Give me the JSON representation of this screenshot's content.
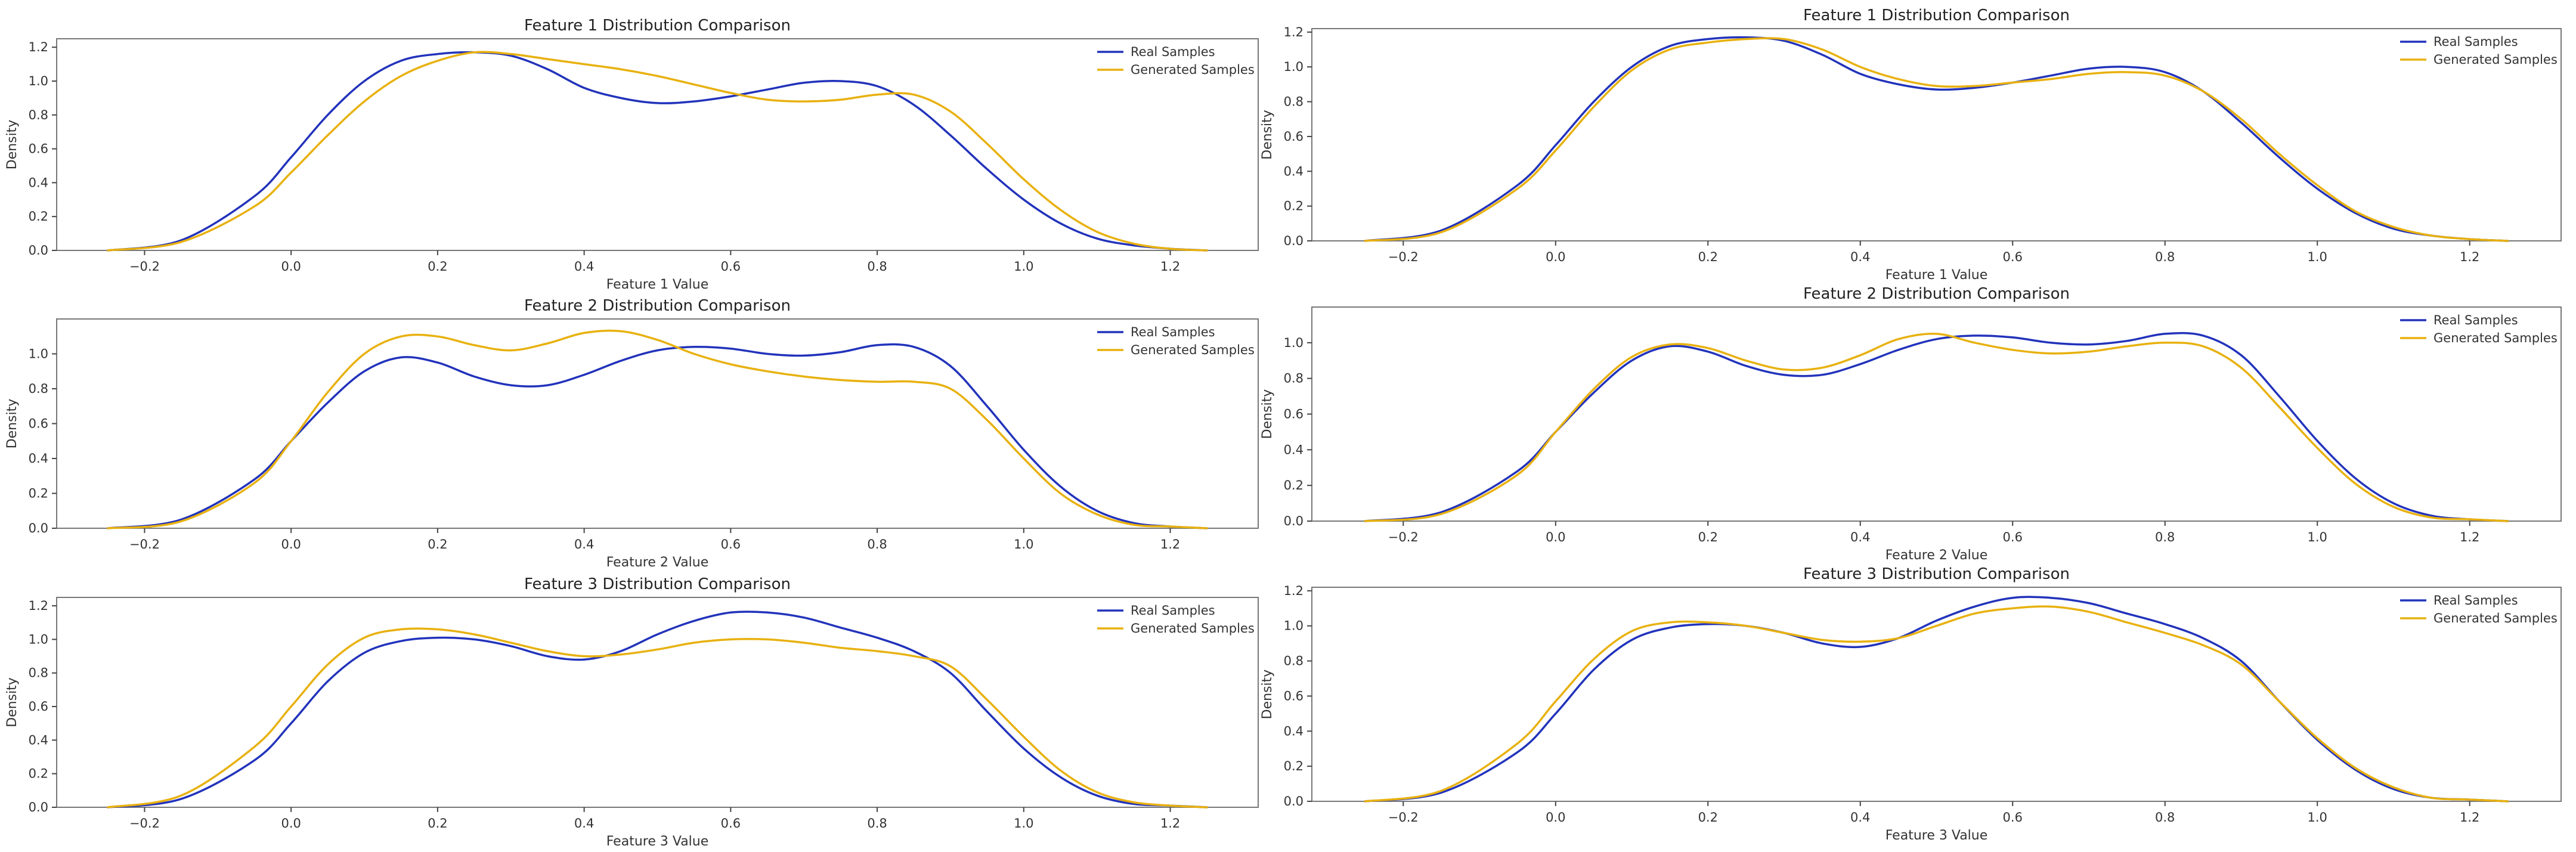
{
  "colors": {
    "real": "#2233bb",
    "generated": "#e8b10f",
    "frame": "#777777"
  },
  "legend": {
    "real_label": "Real Samples",
    "generated_label": "Generated Samples",
    "position": "top-right"
  },
  "chart_data": [
    {
      "type": "line",
      "panel": "left-1",
      "title": "Feature 1 Distribution Comparison",
      "xlabel": "Feature 1 Value",
      "ylabel": "Density",
      "xlim": [
        -0.32,
        1.32
      ],
      "ylim": [
        0,
        1.25
      ],
      "xticks": [
        "-0.2",
        "0.0",
        "0.2",
        "0.4",
        "0.6",
        "0.8",
        "1.0",
        "1.2"
      ],
      "yticks": [
        "0.0",
        "0.2",
        "0.4",
        "0.6",
        "0.8",
        "1.0",
        "1.2"
      ],
      "x": [
        -0.25,
        -0.15,
        -0.05,
        0.0,
        0.05,
        0.1,
        0.15,
        0.2,
        0.25,
        0.3,
        0.35,
        0.4,
        0.45,
        0.5,
        0.55,
        0.6,
        0.65,
        0.7,
        0.75,
        0.8,
        0.85,
        0.9,
        0.95,
        1.0,
        1.05,
        1.1,
        1.15,
        1.2,
        1.25
      ],
      "series": [
        {
          "name": "Real Samples",
          "values": [
            0.0,
            0.06,
            0.32,
            0.55,
            0.8,
            1.0,
            1.12,
            1.16,
            1.17,
            1.15,
            1.07,
            0.96,
            0.9,
            0.87,
            0.88,
            0.91,
            0.95,
            0.99,
            1.0,
            0.97,
            0.86,
            0.68,
            0.48,
            0.3,
            0.16,
            0.07,
            0.03,
            0.01,
            0.0
          ]
        },
        {
          "name": "Generated Samples",
          "values": [
            0.0,
            0.05,
            0.26,
            0.46,
            0.68,
            0.88,
            1.03,
            1.12,
            1.17,
            1.16,
            1.13,
            1.1,
            1.07,
            1.03,
            0.98,
            0.93,
            0.89,
            0.88,
            0.89,
            0.92,
            0.92,
            0.82,
            0.63,
            0.42,
            0.24,
            0.11,
            0.04,
            0.01,
            0.0
          ]
        }
      ]
    },
    {
      "type": "line",
      "panel": "left-2",
      "title": "Feature 2 Distribution Comparison",
      "xlabel": "Feature 2 Value",
      "ylabel": "Density",
      "xlim": [
        -0.32,
        1.32
      ],
      "ylim": [
        0,
        1.2
      ],
      "xticks": [
        "-0.2",
        "0.0",
        "0.2",
        "0.4",
        "0.6",
        "0.8",
        "1.0",
        "1.2"
      ],
      "yticks": [
        "0.0",
        "0.2",
        "0.4",
        "0.6",
        "0.8",
        "1.0"
      ],
      "x": [
        -0.25,
        -0.15,
        -0.05,
        0.0,
        0.05,
        0.1,
        0.15,
        0.2,
        0.25,
        0.3,
        0.35,
        0.4,
        0.45,
        0.5,
        0.55,
        0.6,
        0.65,
        0.7,
        0.75,
        0.8,
        0.85,
        0.9,
        0.95,
        1.0,
        1.05,
        1.1,
        1.15,
        1.2,
        1.25
      ],
      "series": [
        {
          "name": "Real Samples",
          "values": [
            0.0,
            0.05,
            0.28,
            0.5,
            0.72,
            0.9,
            0.98,
            0.95,
            0.87,
            0.82,
            0.82,
            0.88,
            0.96,
            1.02,
            1.04,
            1.03,
            1.0,
            0.99,
            1.01,
            1.05,
            1.04,
            0.93,
            0.7,
            0.45,
            0.24,
            0.1,
            0.03,
            0.01,
            0.0
          ]
        },
        {
          "name": "Generated Samples",
          "values": [
            0.0,
            0.04,
            0.26,
            0.5,
            0.78,
            1.0,
            1.1,
            1.1,
            1.05,
            1.02,
            1.06,
            1.12,
            1.13,
            1.08,
            1.0,
            0.94,
            0.9,
            0.87,
            0.85,
            0.84,
            0.84,
            0.8,
            0.62,
            0.4,
            0.2,
            0.08,
            0.02,
            0.01,
            0.0
          ]
        }
      ]
    },
    {
      "type": "line",
      "panel": "left-3",
      "title": "Feature 3 Distribution Comparison",
      "xlabel": "Feature 3 Value",
      "ylabel": "Density",
      "xlim": [
        -0.32,
        1.32
      ],
      "ylim": [
        0,
        1.25
      ],
      "xticks": [
        "-0.2",
        "0.0",
        "0.2",
        "0.4",
        "0.6",
        "0.8",
        "1.0",
        "1.2"
      ],
      "yticks": [
        "0.0",
        "0.2",
        "0.4",
        "0.6",
        "0.8",
        "1.0",
        "1.2"
      ],
      "x": [
        -0.25,
        -0.15,
        -0.05,
        0.0,
        0.05,
        0.1,
        0.15,
        0.2,
        0.25,
        0.3,
        0.35,
        0.4,
        0.45,
        0.5,
        0.55,
        0.6,
        0.65,
        0.7,
        0.75,
        0.8,
        0.85,
        0.9,
        0.95,
        1.0,
        1.05,
        1.1,
        1.15,
        1.2,
        1.25
      ],
      "series": [
        {
          "name": "Real Samples",
          "values": [
            0.0,
            0.05,
            0.28,
            0.5,
            0.75,
            0.92,
            0.99,
            1.01,
            1.0,
            0.96,
            0.9,
            0.88,
            0.93,
            1.03,
            1.11,
            1.16,
            1.16,
            1.13,
            1.07,
            1.01,
            0.93,
            0.8,
            0.57,
            0.35,
            0.18,
            0.07,
            0.02,
            0.01,
            0.0
          ]
        },
        {
          "name": "Generated Samples",
          "values": [
            0.0,
            0.07,
            0.36,
            0.6,
            0.85,
            1.01,
            1.06,
            1.06,
            1.03,
            0.98,
            0.93,
            0.9,
            0.91,
            0.94,
            0.98,
            1.0,
            1.0,
            0.98,
            0.95,
            0.93,
            0.9,
            0.84,
            0.64,
            0.42,
            0.22,
            0.09,
            0.03,
            0.01,
            0.0
          ]
        }
      ]
    },
    {
      "type": "line",
      "panel": "right-1",
      "title": "Feature 1 Distribution Comparison",
      "xlabel": "Feature 1 Value",
      "ylabel": "Density",
      "xlim": [
        -0.32,
        1.32
      ],
      "ylim": [
        0,
        1.22
      ],
      "xticks": [
        "-0.2",
        "0.0",
        "0.2",
        "0.4",
        "0.6",
        "0.8",
        "1.0",
        "1.2"
      ],
      "yticks": [
        "0.0",
        "0.2",
        "0.4",
        "0.6",
        "0.8",
        "1.0",
        "1.2"
      ],
      "x": [
        -0.25,
        -0.15,
        -0.05,
        0.0,
        0.05,
        0.1,
        0.15,
        0.2,
        0.25,
        0.3,
        0.35,
        0.4,
        0.45,
        0.5,
        0.55,
        0.6,
        0.65,
        0.7,
        0.75,
        0.8,
        0.85,
        0.9,
        0.95,
        1.0,
        1.05,
        1.1,
        1.15,
        1.2,
        1.25
      ],
      "series": [
        {
          "name": "Real Samples",
          "values": [
            0.0,
            0.06,
            0.32,
            0.55,
            0.8,
            1.0,
            1.12,
            1.16,
            1.17,
            1.15,
            1.07,
            0.96,
            0.9,
            0.87,
            0.88,
            0.91,
            0.95,
            0.99,
            1.0,
            0.97,
            0.86,
            0.68,
            0.48,
            0.3,
            0.16,
            0.07,
            0.03,
            0.01,
            0.0
          ]
        },
        {
          "name": "Generated Samples",
          "values": [
            0.0,
            0.05,
            0.3,
            0.52,
            0.77,
            0.98,
            1.1,
            1.14,
            1.16,
            1.16,
            1.1,
            1.0,
            0.93,
            0.89,
            0.89,
            0.91,
            0.93,
            0.96,
            0.97,
            0.95,
            0.86,
            0.7,
            0.5,
            0.32,
            0.17,
            0.08,
            0.03,
            0.01,
            0.0
          ]
        }
      ]
    },
    {
      "type": "line",
      "panel": "right-2",
      "title": "Feature 2 Distribution Comparison",
      "xlabel": "Feature 2 Value",
      "ylabel": "Density",
      "xlim": [
        -0.32,
        1.32
      ],
      "ylim": [
        0,
        1.2
      ],
      "xticks": [
        "-0.2",
        "0.0",
        "0.2",
        "0.4",
        "0.6",
        "0.8",
        "1.0",
        "1.2"
      ],
      "yticks": [
        "0.0",
        "0.2",
        "0.4",
        "0.6",
        "0.8",
        "1.0"
      ],
      "x": [
        -0.25,
        -0.15,
        -0.05,
        0.0,
        0.05,
        0.1,
        0.15,
        0.2,
        0.25,
        0.3,
        0.35,
        0.4,
        0.45,
        0.5,
        0.55,
        0.6,
        0.65,
        0.7,
        0.75,
        0.8,
        0.85,
        0.9,
        0.95,
        1.0,
        1.05,
        1.1,
        1.15,
        1.2,
        1.25
      ],
      "series": [
        {
          "name": "Real Samples",
          "values": [
            0.0,
            0.05,
            0.28,
            0.5,
            0.72,
            0.9,
            0.98,
            0.95,
            0.87,
            0.82,
            0.82,
            0.88,
            0.96,
            1.02,
            1.04,
            1.03,
            1.0,
            0.99,
            1.01,
            1.05,
            1.04,
            0.93,
            0.7,
            0.45,
            0.24,
            0.1,
            0.03,
            0.01,
            0.0
          ]
        },
        {
          "name": "Generated Samples",
          "values": [
            0.0,
            0.04,
            0.26,
            0.5,
            0.74,
            0.92,
            0.99,
            0.97,
            0.9,
            0.85,
            0.86,
            0.93,
            1.02,
            1.05,
            1.0,
            0.96,
            0.94,
            0.95,
            0.98,
            1.0,
            0.98,
            0.86,
            0.64,
            0.41,
            0.21,
            0.08,
            0.02,
            0.01,
            0.0
          ]
        }
      ]
    },
    {
      "type": "line",
      "panel": "right-3",
      "title": "Feature 3 Distribution Comparison",
      "xlabel": "Feature 3 Value",
      "ylabel": "Density",
      "xlim": [
        -0.32,
        1.32
      ],
      "ylim": [
        0,
        1.22
      ],
      "xticks": [
        "-0.2",
        "0.0",
        "0.2",
        "0.4",
        "0.6",
        "0.8",
        "1.0",
        "1.2"
      ],
      "yticks": [
        "0.0",
        "0.2",
        "0.4",
        "0.6",
        "0.8",
        "1.0",
        "1.2"
      ],
      "x": [
        -0.25,
        -0.15,
        -0.05,
        0.0,
        0.05,
        0.1,
        0.15,
        0.2,
        0.25,
        0.3,
        0.35,
        0.4,
        0.45,
        0.5,
        0.55,
        0.6,
        0.65,
        0.7,
        0.75,
        0.8,
        0.85,
        0.9,
        0.95,
        1.0,
        1.05,
        1.1,
        1.15,
        1.2,
        1.25
      ],
      "series": [
        {
          "name": "Real Samples",
          "values": [
            0.0,
            0.05,
            0.28,
            0.5,
            0.75,
            0.92,
            0.99,
            1.01,
            1.0,
            0.96,
            0.9,
            0.88,
            0.93,
            1.03,
            1.11,
            1.16,
            1.16,
            1.13,
            1.07,
            1.01,
            0.93,
            0.8,
            0.57,
            0.35,
            0.18,
            0.07,
            0.02,
            0.01,
            0.0
          ]
        },
        {
          "name": "Generated Samples",
          "values": [
            0.0,
            0.06,
            0.33,
            0.57,
            0.81,
            0.97,
            1.02,
            1.02,
            1.0,
            0.96,
            0.92,
            0.91,
            0.93,
            1.0,
            1.07,
            1.1,
            1.11,
            1.08,
            1.02,
            0.96,
            0.89,
            0.78,
            0.57,
            0.36,
            0.19,
            0.08,
            0.02,
            0.01,
            0.0
          ]
        }
      ]
    }
  ]
}
